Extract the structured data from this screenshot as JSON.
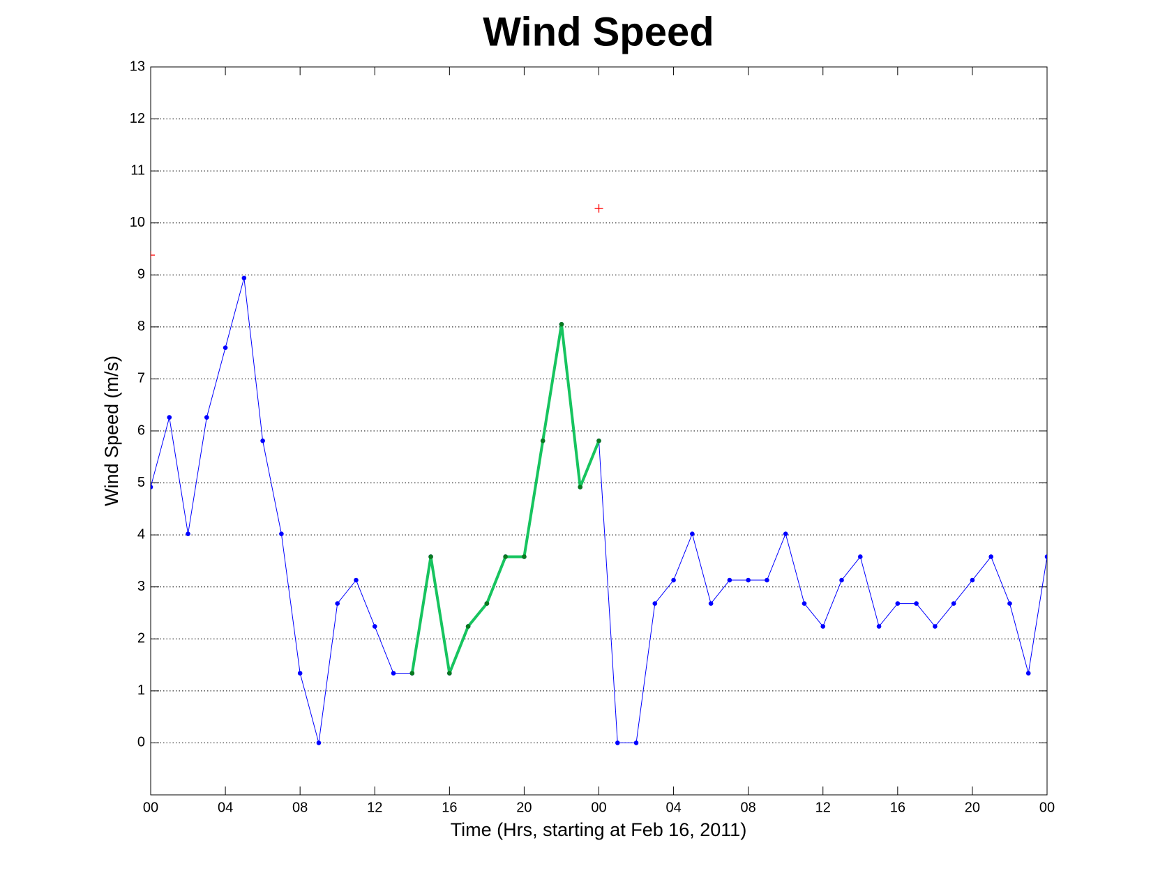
{
  "chart_data": {
    "type": "line",
    "title": "Wind Speed",
    "x_label": "Time (Hrs, starting at Feb 16, 2011)",
    "y_label": "Wind Speed (m/s)",
    "xlim": [
      0,
      48
    ],
    "ylim": [
      -1,
      13
    ],
    "xticks": [
      {
        "value": 0,
        "label": "00"
      },
      {
        "value": 4,
        "label": "04"
      },
      {
        "value": 8,
        "label": "08"
      },
      {
        "value": 12,
        "label": "12"
      },
      {
        "value": 16,
        "label": "16"
      },
      {
        "value": 20,
        "label": "20"
      },
      {
        "value": 24,
        "label": "00"
      },
      {
        "value": 28,
        "label": "04"
      },
      {
        "value": 32,
        "label": "08"
      },
      {
        "value": 36,
        "label": "12"
      },
      {
        "value": 40,
        "label": "16"
      },
      {
        "value": 44,
        "label": "20"
      },
      {
        "value": 48,
        "label": "00"
      }
    ],
    "yticks": [
      0,
      1,
      2,
      3,
      4,
      5,
      6,
      7,
      8,
      9,
      10,
      11,
      12,
      13
    ],
    "grid": "y",
    "series": [
      {
        "color": "#0000ff",
        "marker": "dot",
        "marker_color": "#0000ff",
        "line_width": 1,
        "x": [
          0,
          1,
          2,
          3,
          4,
          5,
          6,
          7,
          8,
          9,
          10,
          11,
          12,
          13,
          14,
          15,
          16,
          17,
          18,
          19,
          20,
          21,
          22,
          23,
          24,
          25,
          26,
          27,
          28,
          29,
          30,
          31,
          32,
          33,
          34,
          35,
          36,
          37,
          38,
          39,
          40,
          41,
          42,
          43,
          44,
          45,
          46,
          47,
          48
        ],
        "values": [
          4.92,
          6.26,
          4.02,
          6.26,
          7.6,
          8.94,
          5.81,
          4.02,
          1.34,
          0,
          2.68,
          3.13,
          2.24,
          1.34,
          1.34,
          3.58,
          1.34,
          2.24,
          2.68,
          3.58,
          3.58,
          5.81,
          8.05,
          4.92,
          5.81,
          0,
          0,
          2.68,
          3.13,
          4.02,
          2.68,
          3.13,
          3.13,
          3.13,
          4.02,
          2.68,
          2.24,
          3.13,
          3.58,
          2.24,
          2.68,
          2.68,
          2.24,
          2.68,
          3.13,
          3.58,
          2.68,
          1.34,
          3.58
        ]
      },
      {
        "color": "#17c45f",
        "marker": "dot",
        "marker_color": "#0a7a1e",
        "line_width": 4,
        "x": [
          14,
          15,
          16,
          17,
          18,
          19,
          20,
          21,
          22,
          23,
          24
        ],
        "values": [
          1.34,
          3.58,
          1.34,
          2.24,
          2.68,
          3.58,
          3.58,
          5.81,
          8.05,
          4.92,
          5.81
        ]
      },
      {
        "color": "#ff0000",
        "marker": "plus",
        "marker_color": "#ff0000",
        "line_width": 0,
        "x": [
          0,
          24
        ],
        "values": [
          9.38,
          10.28
        ]
      }
    ]
  }
}
